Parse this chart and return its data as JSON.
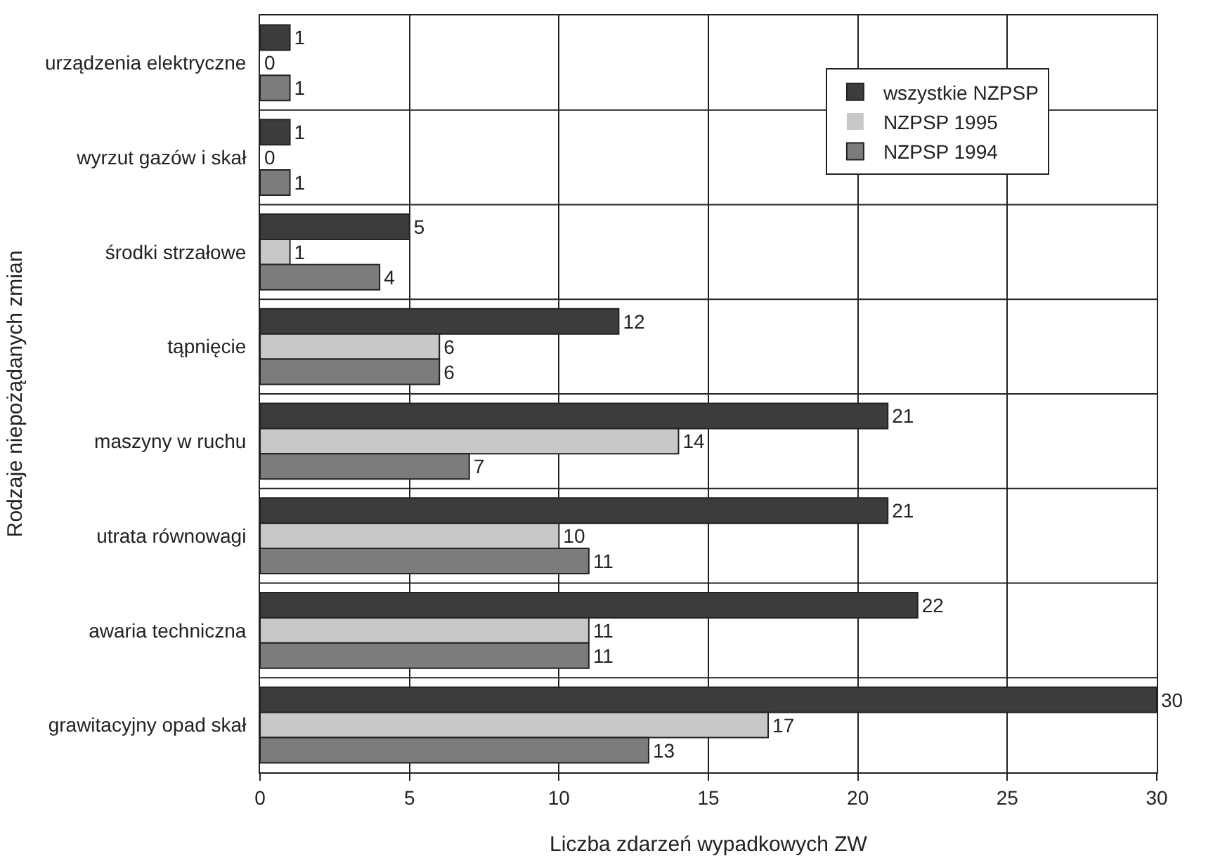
{
  "chart_data": {
    "type": "bar",
    "orientation": "horizontal",
    "xlabel": "Liczba zdarzeń wypadkowych ZW",
    "ylabel": "Rodzaje niepożądanych zmian",
    "categories": [
      "urządzenia elektryczne",
      "wyrzut gazów i skał",
      "środki strzałowe",
      "tąpnięcie",
      "maszyny w ruchu",
      "utrata równowagi",
      "awaria techniczna",
      "grawitacyjny opad skał"
    ],
    "series": [
      {
        "name": "wszystkie NZPSP",
        "color": "#3c3c3c",
        "values": [
          1,
          1,
          5,
          12,
          21,
          21,
          22,
          30
        ]
      },
      {
        "name": "NZPSP 1995",
        "color": "#c8c8c8",
        "values": [
          0,
          0,
          1,
          6,
          14,
          10,
          11,
          17
        ]
      },
      {
        "name": "NZPSP 1994",
        "color": "#7c7c7c",
        "values": [
          1,
          1,
          4,
          6,
          7,
          11,
          11,
          13
        ]
      }
    ],
    "xlim": [
      0,
      30
    ],
    "xticks": [
      0,
      5,
      10,
      15,
      20,
      25,
      30
    ],
    "grid": true,
    "legend": "top right",
    "data_labels": true
  }
}
